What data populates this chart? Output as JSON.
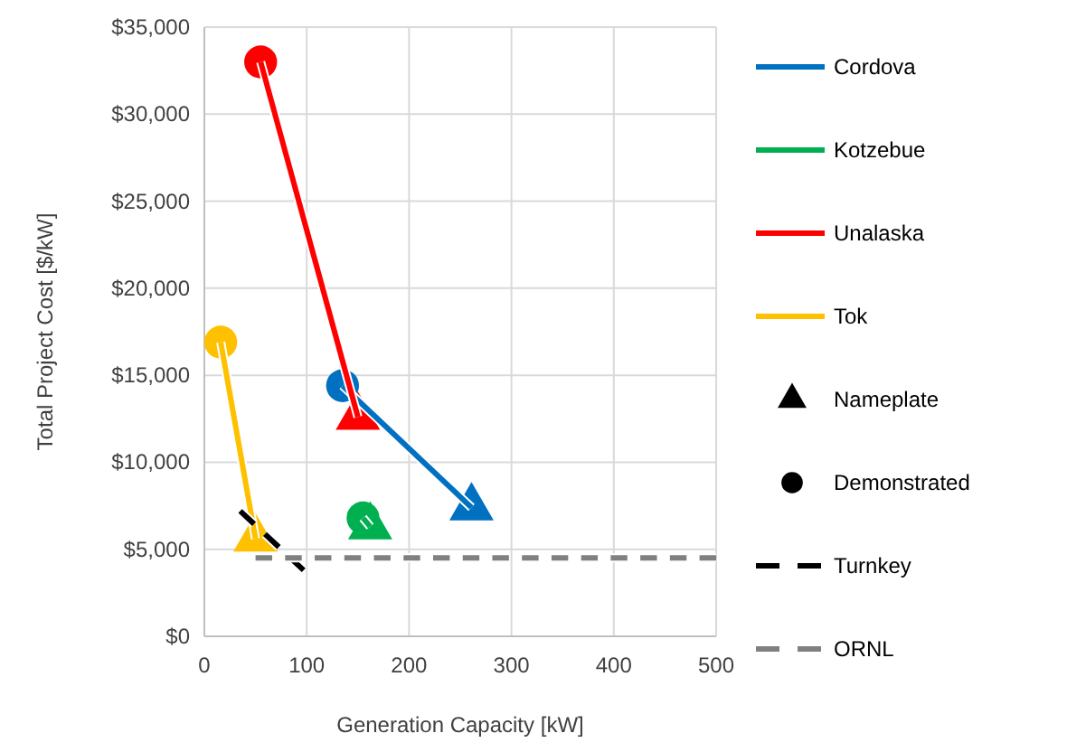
{
  "chart_data": {
    "type": "line",
    "xlabel": "Generation Capacity [kW]",
    "ylabel": "Total Project Cost [$/kW]",
    "xlim": [
      0,
      500
    ],
    "xticks": [
      0,
      100,
      200,
      300,
      400,
      500
    ],
    "ylim": [
      0,
      35000
    ],
    "yticks": [
      {
        "value": 0,
        "label": "$0"
      },
      {
        "value": 5000,
        "label": "$5,000"
      },
      {
        "value": 10000,
        "label": "$10,000"
      },
      {
        "value": 15000,
        "label": "$15,000"
      },
      {
        "value": 20000,
        "label": "$20,000"
      },
      {
        "value": 25000,
        "label": "$25,000"
      },
      {
        "value": 30000,
        "label": "$30,000"
      },
      {
        "value": 35000,
        "label": "$35,000"
      }
    ],
    "annotations": [
      "Nameplate",
      "Demonstrated"
    ],
    "grid": true,
    "legend": "right",
    "marker": "none",
    "series": [
      {
        "name": "Cordova",
        "color": "#0070c0",
        "x": [
          135,
          261
        ],
        "values": [
          14400,
          7400
        ]
      },
      {
        "name": "Kotzebue",
        "color": "#00b050",
        "x": [
          155,
          162
        ],
        "values": [
          6800,
          6300
        ]
      },
      {
        "name": "Unalaska",
        "color": "#ff0000",
        "x": [
          55,
          150
        ],
        "values": [
          33000,
          12600
        ]
      },
      {
        "name": "Tok",
        "color": "#ffc000",
        "x": [
          16,
          50
        ],
        "values": [
          16900,
          5600
        ]
      },
      {
        "type": "scatter",
        "marker": "triangle",
        "x": [
          261,
          162,
          150,
          50
        ],
        "values": [
          7400,
          6300,
          12600,
          5600
        ],
        "colors": [
          "#0070c0",
          "#00b050",
          "#ff0000",
          "#ffc000"
        ]
      },
      {
        "type": "scatter",
        "marker": "circle",
        "x": [
          135,
          155,
          55,
          16
        ],
        "values": [
          14400,
          6800,
          33000,
          16900
        ],
        "colors": [
          "#0070c0",
          "#00b050",
          "#ff0000",
          "#ffc000"
        ]
      },
      {
        "name": "Turnkey",
        "color": "#000000",
        "line_style": "dashed",
        "x": [
          35,
          97
        ],
        "values": [
          7200,
          3800
        ]
      },
      {
        "name": "ORNL",
        "color": "#808080",
        "line_style": "dashed",
        "x": [
          50,
          500
        ],
        "values": [
          4500,
          4500
        ]
      }
    ]
  }
}
